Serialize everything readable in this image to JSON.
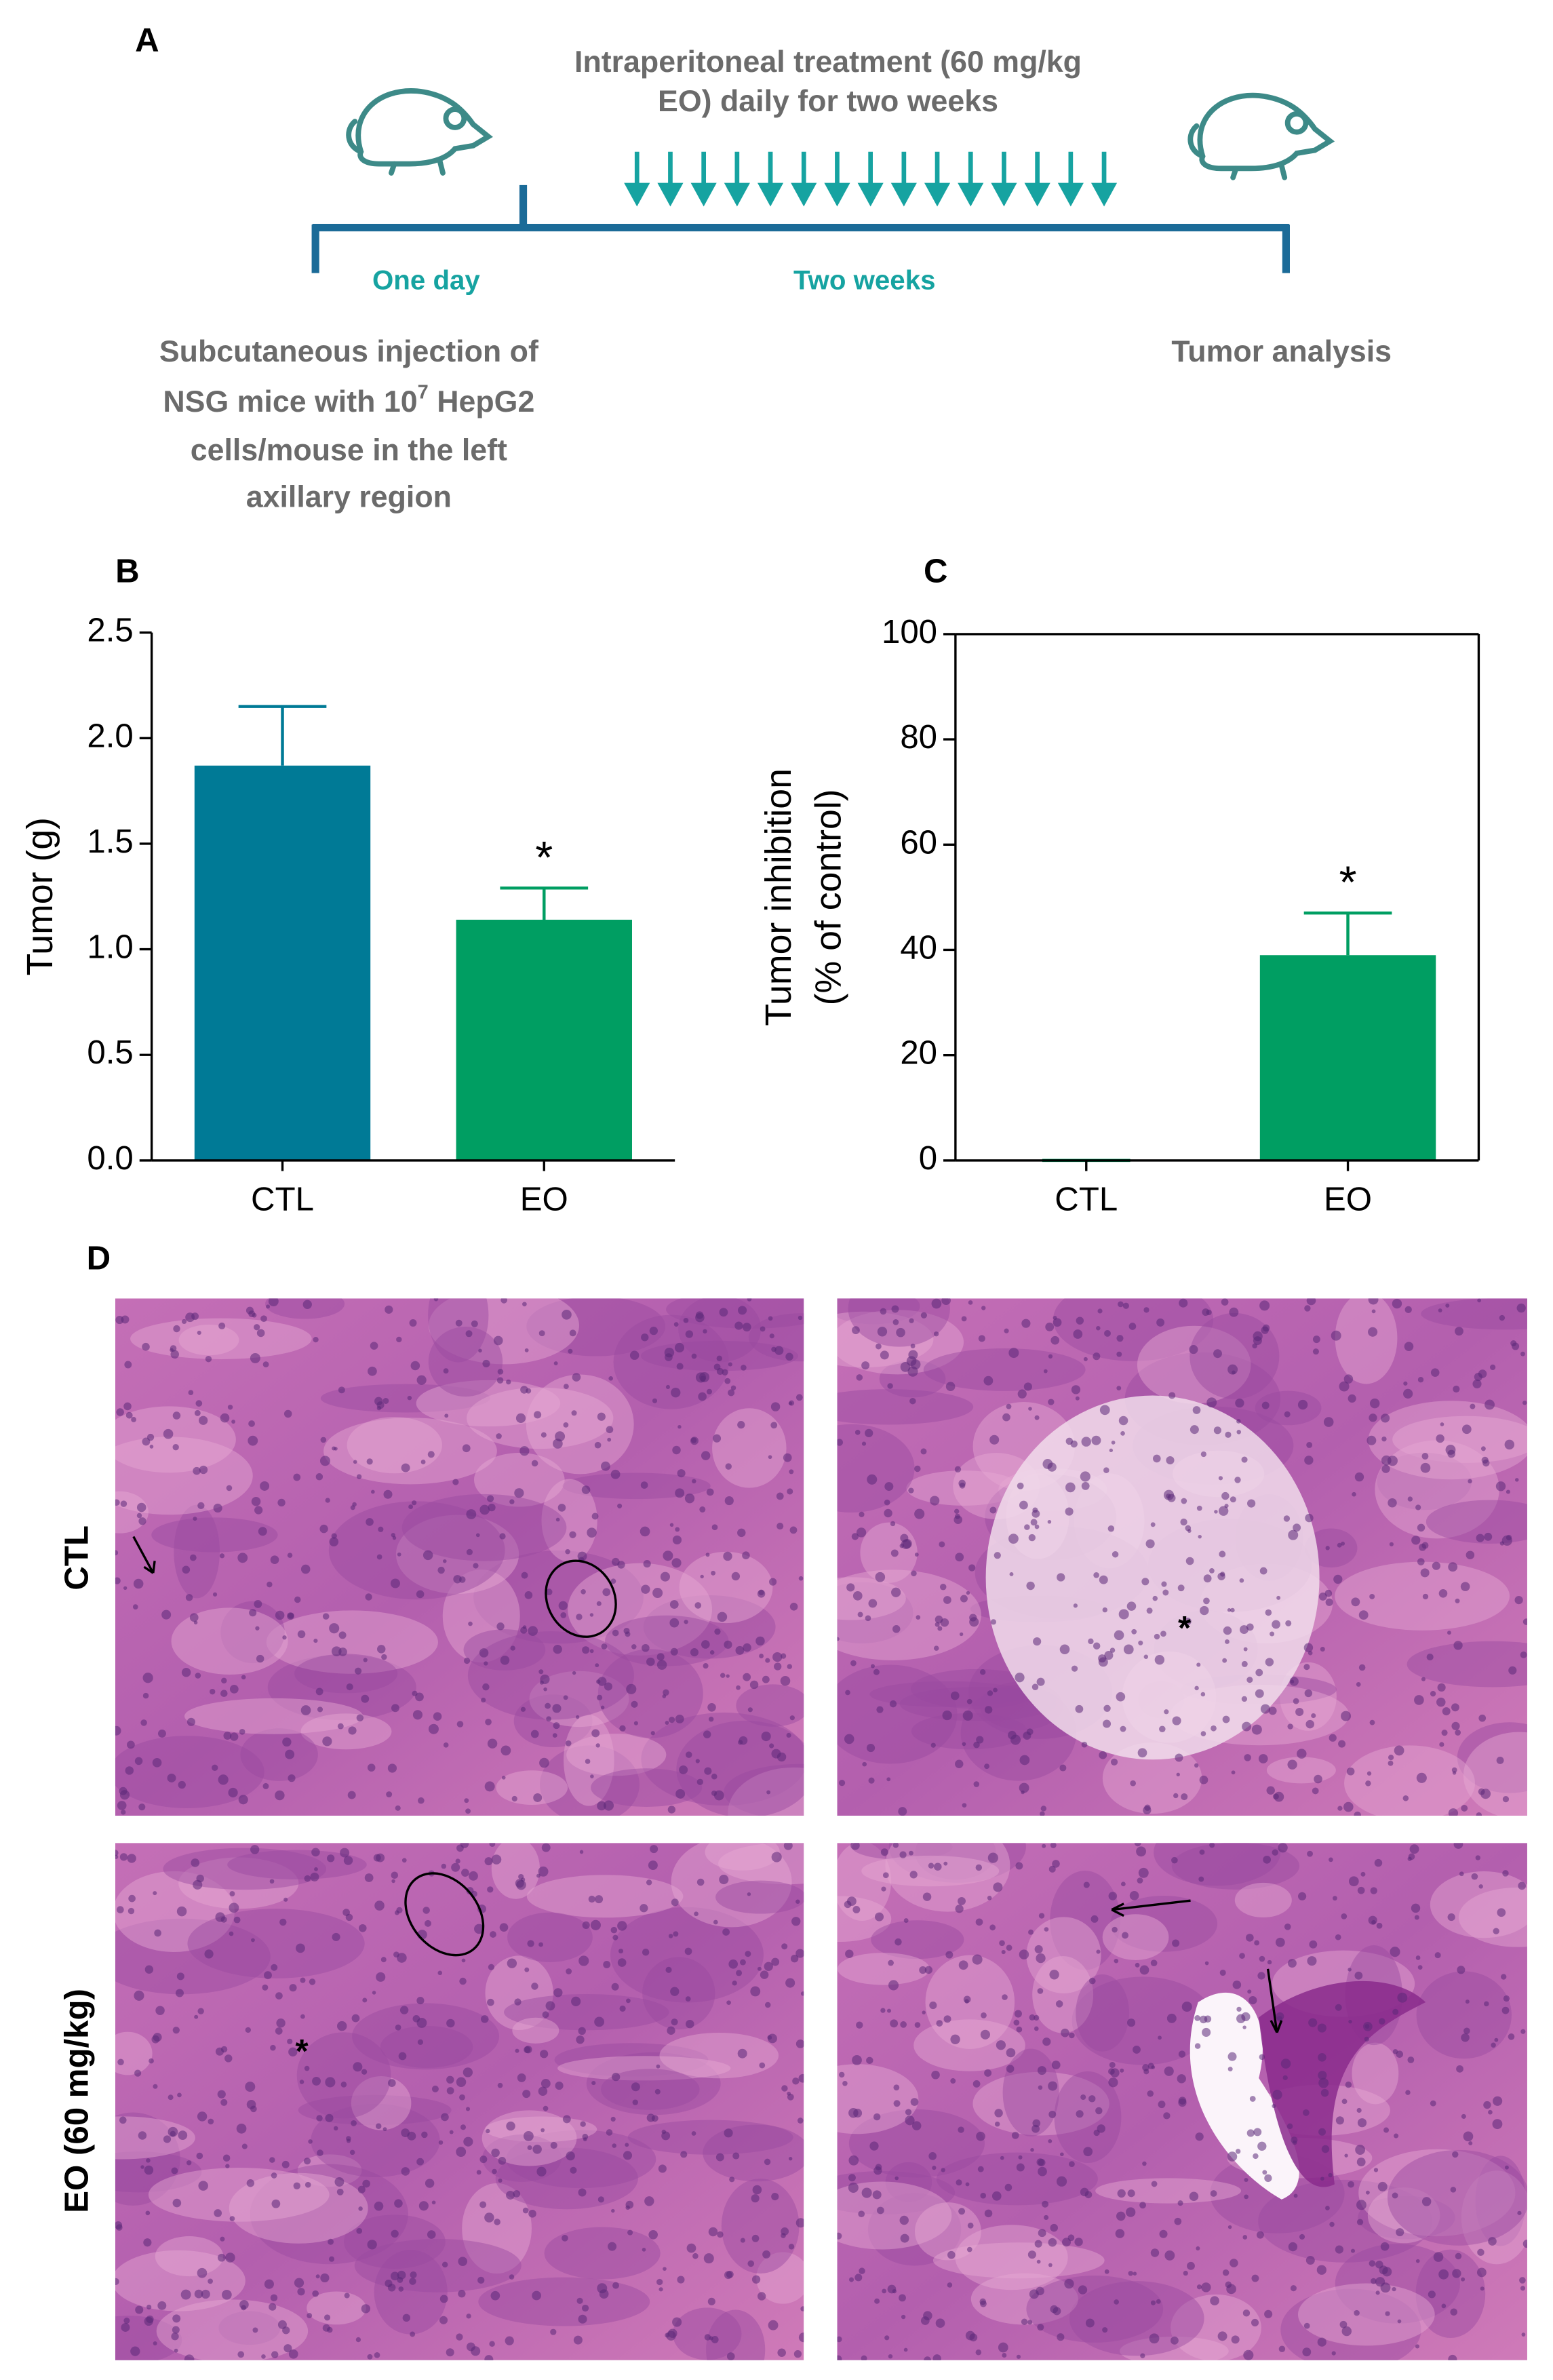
{
  "panel_a": {
    "label": "A",
    "treatment": [
      "Intraperitoneal treatment (60 mg/kg",
      "EO) daily for two weeks"
    ],
    "phase_1": "One day",
    "phase_2": "Two weeks",
    "injection": {
      "line_1": "Subcutaneous injection of",
      "line_2_start": "NSG mice with 10",
      "line_2_sup": "7",
      "line_2_end": " HepG2",
      "line_3": "cells/mouse in the left",
      "line_4": "axillary region"
    },
    "end": "Tumor analysis"
  },
  "chart_data": [
    {
      "type": "bar",
      "label": "B",
      "y_label": [
        "Tumor (g)"
      ],
      "categories": [
        "CTL",
        "EO"
      ],
      "values": [
        1.87,
        1.14
      ],
      "errors": [
        0.28,
        0.15
      ],
      "colors": [
        "#007a96",
        "#009e62"
      ],
      "significance": [
        null,
        "*"
      ],
      "ylim": [
        0,
        2.5
      ],
      "yticks": [
        {
          "value": 0,
          "label": "0.0"
        },
        0.5,
        {
          "value": 1,
          "label": "1.0"
        },
        1.5,
        {
          "value": 2,
          "label": "2.0"
        },
        2.5
      ],
      "frame": false
    },
    {
      "type": "bar",
      "label": "C",
      "y_label": [
        "Tumor inhibition",
        "(% of control)"
      ],
      "categories": [
        "CTL",
        "EO"
      ],
      "values": [
        0,
        39
      ],
      "errors": [
        0,
        8
      ],
      "colors": [
        "#009e62",
        "#009e62"
      ],
      "significance": [
        null,
        "*"
      ],
      "ylim": [
        0,
        100
      ],
      "yticks": [
        0,
        20,
        40,
        60,
        80,
        100
      ],
      "frame": true
    }
  ],
  "panel_d": {
    "label": "D",
    "rows": [
      "CTL",
      "EO (60 mg/kg)"
    ],
    "markers": [
      "*",
      "*"
    ]
  }
}
